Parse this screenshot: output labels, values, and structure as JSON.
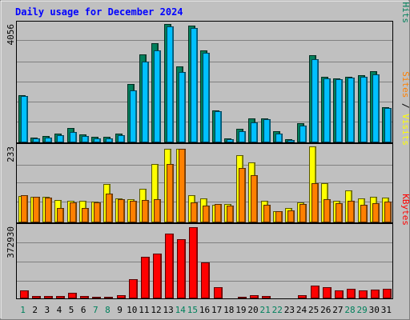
{
  "chart_data": [
    {
      "type": "bar",
      "title": "Daily usage for December 2024",
      "categories": [
        "1",
        "2",
        "3",
        "4",
        "5",
        "6",
        "7",
        "8",
        "9",
        "10",
        "11",
        "12",
        "13",
        "14",
        "15",
        "16",
        "17",
        "18",
        "19",
        "20",
        "21",
        "22",
        "23",
        "24",
        "25",
        "26",
        "27",
        "28",
        "29",
        "30",
        "31"
      ],
      "weekend_days": [
        "1",
        "7",
        "8",
        "14",
        "15",
        "21",
        "22",
        "28",
        "29"
      ],
      "max_label": "4056",
      "ylim": [
        0,
        4056
      ],
      "right_label": [
        "Pages",
        "Files",
        "Hits"
      ],
      "series": [
        {
          "name": "Hits",
          "color": "#00805c",
          "values": [
            1620,
            170,
            220,
            300,
            500,
            270,
            180,
            180,
            290,
            2000,
            3020,
            3390,
            4056,
            2610,
            4000,
            3140,
            1100,
            140,
            460,
            830,
            820,
            380,
            100,
            650,
            3000,
            2250,
            2200,
            2260,
            2300,
            2450,
            1200
          ]
        },
        {
          "name": "Files",
          "color": "#00c0ff",
          "values": [
            1580,
            130,
            170,
            260,
            360,
            220,
            130,
            130,
            240,
            1780,
            2770,
            3150,
            3980,
            2410,
            3920,
            3070,
            1060,
            110,
            380,
            680,
            790,
            310,
            70,
            580,
            2850,
            2200,
            2160,
            2220,
            2260,
            2330,
            1170
          ]
        }
      ]
    },
    {
      "type": "bar",
      "max_label": "233",
      "ylim": [
        0,
        233
      ],
      "right_label": [
        "Sites",
        "Visits"
      ],
      "series": [
        {
          "name": "Visits",
          "color": "#ffff00",
          "values": [
            80,
            78,
            78,
            68,
            65,
            65,
            64,
            117,
            74,
            70,
            103,
            178,
            226,
            225,
            83,
            73,
            55,
            56,
            205,
            184,
            67,
            34,
            45,
            62,
            233,
            120,
            67,
            97,
            73,
            79,
            75
          ]
        },
        {
          "name": "Sites",
          "color": "#ff8000",
          "values": [
            83,
            78,
            76,
            45,
            62,
            45,
            62,
            88,
            70,
            65,
            68,
            72,
            180,
            225,
            62,
            52,
            56,
            51,
            168,
            145,
            53,
            34,
            38,
            56,
            120,
            70,
            58,
            65,
            55,
            60,
            64
          ]
        }
      ]
    },
    {
      "type": "bar",
      "max_label": "372930",
      "ylim": [
        0,
        372930
      ],
      "right_label": [
        "KBytes"
      ],
      "series": [
        {
          "name": "KBytes",
          "color": "#ff0000",
          "values": [
            40000,
            12000,
            12000,
            14000,
            28000,
            12000,
            7000,
            10000,
            15000,
            98000,
            215000,
            230000,
            335000,
            305000,
            370000,
            188000,
            57000,
            4000,
            10000,
            17000,
            12000,
            5000,
            5000,
            16000,
            65000,
            58000,
            42000,
            48000,
            42000,
            45000,
            50000
          ]
        }
      ]
    }
  ]
}
